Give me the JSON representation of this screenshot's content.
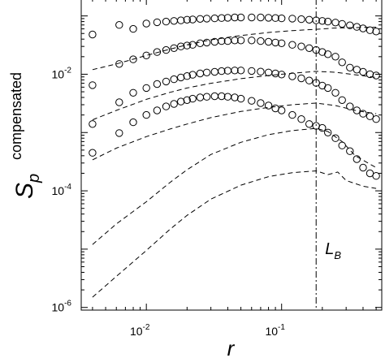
{
  "chart_data": {
    "type": "scatter",
    "xlabel": "r",
    "ylabel_main": "S",
    "ylabel_sub": "p",
    "ylabel_super": "compensated",
    "xscale": "log",
    "yscale": "log",
    "xlim": [
      0.0033,
      0.55
    ],
    "ylim": [
      9e-07,
      0.2
    ],
    "x_ticks": [
      {
        "value": 0.01,
        "base": "10",
        "exp": "-2"
      },
      {
        "value": 0.1,
        "base": "10",
        "exp": "-1"
      }
    ],
    "y_ticks": [
      {
        "value": 1e-06,
        "base": "10",
        "exp": "-6"
      },
      {
        "value": 0.0001,
        "base": "10",
        "exp": "-4"
      },
      {
        "value": 0.01,
        "base": "10",
        "exp": "-2"
      }
    ],
    "vline": {
      "x": 0.18,
      "label_main": "L",
      "label_sub": "B",
      "label_y": 1e-05
    },
    "grid": false,
    "legend": "none",
    "series": [
      {
        "style": "circles",
        "points": [
          [
            0.004,
            0.048
          ],
          [
            0.0063,
            0.07
          ],
          [
            0.008,
            0.06
          ],
          [
            0.01,
            0.074
          ],
          [
            0.012,
            0.078
          ],
          [
            0.014,
            0.08
          ],
          [
            0.016,
            0.082
          ],
          [
            0.018,
            0.084
          ],
          [
            0.02,
            0.086
          ],
          [
            0.022,
            0.087
          ],
          [
            0.025,
            0.089
          ],
          [
            0.028,
            0.09
          ],
          [
            0.032,
            0.091
          ],
          [
            0.036,
            0.092
          ],
          [
            0.04,
            0.093
          ],
          [
            0.045,
            0.094
          ],
          [
            0.05,
            0.094
          ],
          [
            0.06,
            0.094
          ],
          [
            0.07,
            0.094
          ],
          [
            0.08,
            0.093
          ],
          [
            0.09,
            0.092
          ],
          [
            0.1,
            0.091
          ],
          [
            0.12,
            0.09
          ],
          [
            0.14,
            0.088
          ],
          [
            0.16,
            0.086
          ],
          [
            0.18,
            0.084
          ],
          [
            0.2,
            0.082
          ],
          [
            0.22,
            0.08
          ],
          [
            0.25,
            0.077
          ],
          [
            0.28,
            0.073
          ],
          [
            0.32,
            0.069
          ],
          [
            0.36,
            0.065
          ],
          [
            0.4,
            0.061
          ],
          [
            0.45,
            0.057
          ],
          [
            0.5,
            0.054
          ]
        ]
      },
      {
        "style": "circles",
        "points": [
          [
            0.004,
            0.0065
          ],
          [
            0.0063,
            0.015
          ],
          [
            0.008,
            0.018
          ],
          [
            0.01,
            0.021
          ],
          [
            0.012,
            0.024
          ],
          [
            0.014,
            0.026
          ],
          [
            0.016,
            0.028
          ],
          [
            0.018,
            0.03
          ],
          [
            0.02,
            0.031
          ],
          [
            0.022,
            0.032
          ],
          [
            0.025,
            0.034
          ],
          [
            0.028,
            0.035
          ],
          [
            0.032,
            0.036
          ],
          [
            0.036,
            0.037
          ],
          [
            0.04,
            0.037
          ],
          [
            0.045,
            0.038
          ],
          [
            0.05,
            0.038
          ],
          [
            0.06,
            0.038
          ],
          [
            0.07,
            0.037
          ],
          [
            0.08,
            0.036
          ],
          [
            0.09,
            0.035
          ],
          [
            0.1,
            0.034
          ],
          [
            0.12,
            0.032
          ],
          [
            0.14,
            0.03
          ],
          [
            0.16,
            0.028
          ],
          [
            0.18,
            0.026
          ],
          [
            0.2,
            0.024
          ],
          [
            0.22,
            0.022
          ],
          [
            0.25,
            0.02
          ],
          [
            0.28,
            0.016
          ],
          [
            0.32,
            0.013
          ],
          [
            0.36,
            0.012
          ],
          [
            0.4,
            0.011
          ],
          [
            0.45,
            0.01
          ],
          [
            0.5,
            0.0095
          ]
        ]
      },
      {
        "style": "circles",
        "points": [
          [
            0.004,
            0.0014
          ],
          [
            0.0063,
            0.0033
          ],
          [
            0.008,
            0.0048
          ],
          [
            0.01,
            0.0058
          ],
          [
            0.012,
            0.0068
          ],
          [
            0.014,
            0.0075
          ],
          [
            0.016,
            0.0082
          ],
          [
            0.018,
            0.0088
          ],
          [
            0.02,
            0.0093
          ],
          [
            0.022,
            0.0098
          ],
          [
            0.025,
            0.0103
          ],
          [
            0.028,
            0.0107
          ],
          [
            0.032,
            0.011
          ],
          [
            0.036,
            0.0113
          ],
          [
            0.04,
            0.0115
          ],
          [
            0.045,
            0.0116
          ],
          [
            0.05,
            0.0116
          ],
          [
            0.06,
            0.0114
          ],
          [
            0.07,
            0.0111
          ],
          [
            0.08,
            0.0107
          ],
          [
            0.09,
            0.0103
          ],
          [
            0.1,
            0.0099
          ],
          [
            0.12,
            0.0092
          ],
          [
            0.14,
            0.0085
          ],
          [
            0.16,
            0.0078
          ],
          [
            0.18,
            0.0071
          ],
          [
            0.2,
            0.0064
          ],
          [
            0.22,
            0.0058
          ],
          [
            0.25,
            0.0048
          ],
          [
            0.28,
            0.0036
          ],
          [
            0.32,
            0.0028
          ],
          [
            0.36,
            0.0024
          ],
          [
            0.4,
            0.0021
          ],
          [
            0.45,
            0.0019
          ],
          [
            0.5,
            0.0017
          ]
        ]
      },
      {
        "style": "circles",
        "points": [
          [
            0.004,
            0.00045
          ],
          [
            0.0063,
            0.00098
          ],
          [
            0.008,
            0.0015
          ],
          [
            0.01,
            0.002
          ],
          [
            0.012,
            0.0024
          ],
          [
            0.014,
            0.0028
          ],
          [
            0.016,
            0.0031
          ],
          [
            0.018,
            0.0034
          ],
          [
            0.02,
            0.0036
          ],
          [
            0.022,
            0.0038
          ],
          [
            0.025,
            0.004
          ],
          [
            0.028,
            0.0041
          ],
          [
            0.032,
            0.0042
          ],
          [
            0.036,
            0.0042
          ],
          [
            0.04,
            0.0041
          ],
          [
            0.045,
            0.004
          ],
          [
            0.05,
            0.0038
          ],
          [
            0.06,
            0.0035
          ],
          [
            0.07,
            0.0032
          ],
          [
            0.08,
            0.0029
          ],
          [
            0.09,
            0.0026
          ],
          [
            0.1,
            0.0024
          ],
          [
            0.12,
            0.002
          ],
          [
            0.14,
            0.0017
          ],
          [
            0.16,
            0.0014
          ],
          [
            0.18,
            0.0013
          ],
          [
            0.2,
            0.0012
          ],
          [
            0.22,
            0.001
          ],
          [
            0.25,
            0.0008
          ],
          [
            0.28,
            0.0006
          ],
          [
            0.32,
            0.00048
          ],
          [
            0.36,
            0.00035
          ],
          [
            0.4,
            0.00025
          ],
          [
            0.45,
            0.0002
          ],
          [
            0.5,
            0.00018
          ]
        ]
      },
      {
        "style": "dashed",
        "points": [
          [
            0.004,
            0.012
          ],
          [
            0.006,
            0.015
          ],
          [
            0.01,
            0.021
          ],
          [
            0.015,
            0.027
          ],
          [
            0.02,
            0.032
          ],
          [
            0.03,
            0.039
          ],
          [
            0.05,
            0.046
          ],
          [
            0.08,
            0.052
          ],
          [
            0.12,
            0.056
          ],
          [
            0.18,
            0.059
          ],
          [
            0.25,
            0.062
          ],
          [
            0.35,
            0.063
          ],
          [
            0.5,
            0.064
          ]
        ]
      },
      {
        "style": "dashed",
        "points": [
          [
            0.004,
            0.00165
          ],
          [
            0.006,
            0.0024
          ],
          [
            0.01,
            0.0037
          ],
          [
            0.015,
            0.0049
          ],
          [
            0.02,
            0.0058
          ],
          [
            0.03,
            0.007
          ],
          [
            0.05,
            0.0084
          ],
          [
            0.08,
            0.0095
          ],
          [
            0.12,
            0.0104
          ],
          [
            0.18,
            0.0112
          ],
          [
            0.25,
            0.0108
          ],
          [
            0.35,
            0.0098
          ],
          [
            0.5,
            0.0088
          ]
        ]
      },
      {
        "style": "dashed",
        "points": [
          [
            0.004,
            0.00034
          ],
          [
            0.006,
            0.00054
          ],
          [
            0.01,
            0.00085
          ],
          [
            0.015,
            0.00115
          ],
          [
            0.02,
            0.0014
          ],
          [
            0.03,
            0.0018
          ],
          [
            0.05,
            0.0023
          ],
          [
            0.08,
            0.0027
          ],
          [
            0.12,
            0.003
          ],
          [
            0.18,
            0.0032
          ],
          [
            0.25,
            0.0029
          ],
          [
            0.35,
            0.0024
          ],
          [
            0.5,
            0.0021
          ]
        ]
      },
      {
        "style": "dashed",
        "points": [
          [
            0.004,
            1.2e-05
          ],
          [
            0.006,
            2.7e-05
          ],
          [
            0.01,
            6.5e-05
          ],
          [
            0.015,
            0.00014
          ],
          [
            0.02,
            0.00023
          ],
          [
            0.03,
            0.00042
          ],
          [
            0.05,
            0.00068
          ],
          [
            0.08,
            0.00092
          ],
          [
            0.12,
            0.00108
          ],
          [
            0.18,
            0.00118
          ],
          [
            0.22,
            0.00104
          ],
          [
            0.28,
            0.0007
          ],
          [
            0.35,
            0.0004
          ],
          [
            0.5,
            0.00025
          ]
        ]
      },
      {
        "style": "dashed",
        "points": [
          [
            0.004,
            1.5e-06
          ],
          [
            0.006,
            3.4e-06
          ],
          [
            0.01,
            9.5e-06
          ],
          [
            0.015,
            2.2e-05
          ],
          [
            0.02,
            3.8e-05
          ],
          [
            0.03,
            7.2e-05
          ],
          [
            0.05,
            0.000125
          ],
          [
            0.08,
            0.000175
          ],
          [
            0.12,
            0.000205
          ],
          [
            0.18,
            0.00022
          ],
          [
            0.22,
            0.00019
          ],
          [
            0.26,
            0.00021
          ],
          [
            0.3,
            0.00015
          ],
          [
            0.4,
            0.00012
          ],
          [
            0.5,
            0.00011
          ]
        ]
      }
    ]
  }
}
